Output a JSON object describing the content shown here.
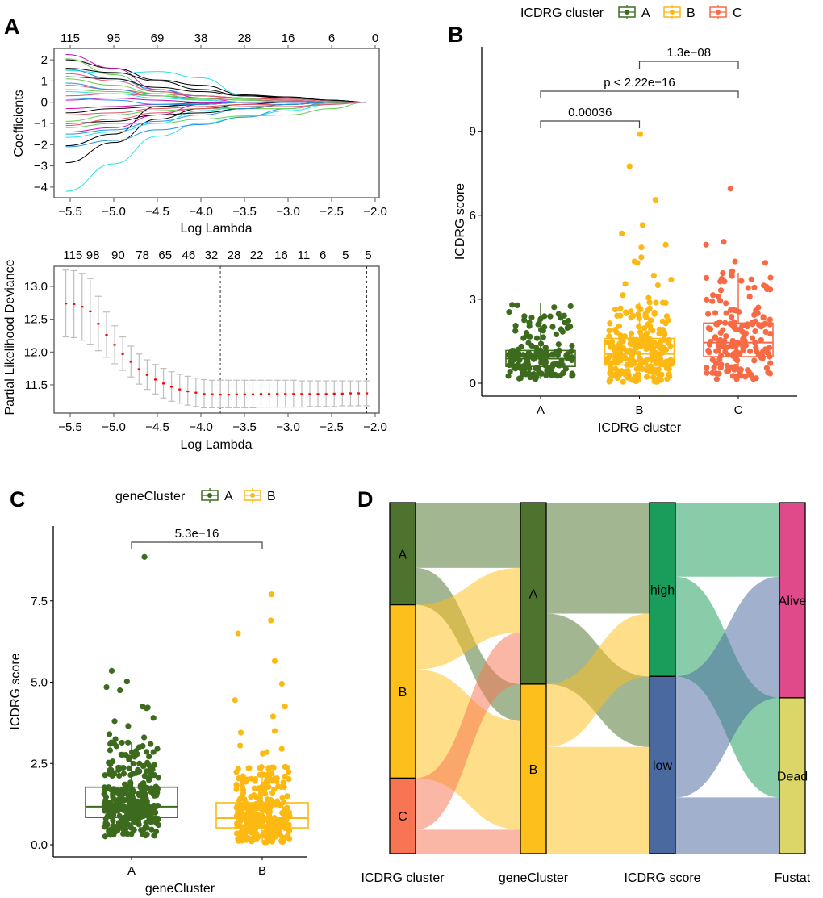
{
  "panel_labels": {
    "A": "A",
    "B": "B",
    "C": "C",
    "D": "D"
  },
  "chart_data": [
    {
      "id": "lasso-coefficients",
      "type": "line",
      "xlabel": "Log Lambda",
      "ylabel": "Coefficients",
      "xlim": [
        -5.65,
        -2.0
      ],
      "ylim": [
        -4.3,
        2.35
      ],
      "xticks": [
        -5.5,
        -5.0,
        -4.5,
        -4.0,
        -3.5,
        -3.0,
        -2.5,
        -2.0
      ],
      "xtick_labels": [
        "−5.5",
        "−5.0",
        "−4.5",
        "−4.0",
        "−3.5",
        "−3.0",
        "−2.5",
        "−2.0"
      ],
      "yticks": [
        -4,
        -3,
        -2,
        -1,
        0,
        1,
        2
      ],
      "ytick_labels": [
        "−4",
        "−3",
        "−2",
        "−1",
        "0",
        "1",
        "2"
      ],
      "top_axis": {
        "ticks": [
          -5.5,
          -5.0,
          -4.5,
          -4.0,
          -3.5,
          -3.0,
          -2.5,
          -2.0
        ],
        "labels": [
          "115",
          "95",
          "69",
          "38",
          "28",
          "16",
          "6",
          "0"
        ]
      },
      "x": [
        -5.55,
        -5.0,
        -4.5,
        -4.0,
        -3.5,
        -3.0,
        -2.5,
        -2.1
      ],
      "series": [
        {
          "color": "#28E2E5",
          "values": [
            -4.2,
            -2.9,
            -1.6,
            -1.0,
            -0.7,
            -0.4,
            -0.1,
            0
          ]
        },
        {
          "color": "#000000",
          "values": [
            -2.85,
            -1.9,
            -0.8,
            -0.3,
            -0.1,
            0,
            0,
            0
          ]
        },
        {
          "color": "#000000",
          "values": [
            -2.05,
            -1.5,
            -0.2,
            0,
            0,
            0,
            0,
            0
          ]
        },
        {
          "color": "#2297E6",
          "values": [
            -2.1,
            -1.8,
            -1.3,
            -1.05,
            -0.7,
            -0.3,
            0,
            0
          ]
        },
        {
          "color": "#000000",
          "values": [
            2.0,
            1.6,
            1.05,
            0.8,
            0.35,
            0.25,
            0.1,
            0
          ]
        },
        {
          "color": "#CD0BBC",
          "values": [
            2.25,
            1.6,
            0.6,
            0.2,
            0,
            0,
            0,
            0
          ]
        },
        {
          "color": "#61D04F",
          "values": [
            2.05,
            1.3,
            0.5,
            0.3,
            0.15,
            0.05,
            0,
            0
          ]
        },
        {
          "color": "#28E2E5",
          "values": [
            1.5,
            1.35,
            1.45,
            1.15,
            0.3,
            0.2,
            0.1,
            0
          ]
        },
        {
          "color": "#000000",
          "values": [
            1.6,
            1.4,
            1.0,
            0.6,
            0.3,
            0.2,
            0.1,
            0
          ]
        },
        {
          "color": "#2297E6",
          "values": [
            1.55,
            1.1,
            0.6,
            0.3,
            0.2,
            0.1,
            0,
            0
          ]
        },
        {
          "color": "#61D04F",
          "values": [
            -1.2,
            -1.0,
            -1.0,
            -0.8,
            -0.65,
            -0.6,
            -0.3,
            0
          ]
        },
        {
          "color": "#61D04F",
          "values": [
            -0.9,
            -0.6,
            -0.4,
            -0.3,
            -0.3,
            -0.3,
            -0.05,
            0
          ]
        },
        {
          "color": "#DF536B",
          "values": [
            0.8,
            0.6,
            0.4,
            0.3,
            0.2,
            0.15,
            0.05,
            0
          ]
        },
        {
          "color": "#DF536B",
          "values": [
            -0.6,
            -0.5,
            -0.3,
            -0.2,
            -0.1,
            -0.1,
            0,
            0
          ]
        },
        {
          "color": "#CD0BBC",
          "values": [
            -1.4,
            -1.2,
            -0.6,
            -0.1,
            0,
            0,
            0,
            0
          ]
        },
        {
          "color": "#000000",
          "values": [
            1.2,
            1.1,
            0.7,
            0.5,
            0.3,
            0.25,
            0.1,
            0
          ]
        },
        {
          "color": "#2297E6",
          "values": [
            0.9,
            0.6,
            0.3,
            0.1,
            0,
            0,
            0,
            0
          ]
        },
        {
          "color": "#28E2E5",
          "values": [
            -1.65,
            -1.4,
            -1.0,
            -0.4,
            -0.2,
            -0.1,
            0,
            0
          ]
        },
        {
          "color": "#000000",
          "values": [
            -1.0,
            -0.9,
            -0.6,
            -0.5,
            -0.3,
            -0.1,
            0,
            0
          ]
        },
        {
          "color": "#DF536B",
          "values": [
            0.3,
            0.4,
            0.3,
            0.2,
            0.1,
            0.05,
            0,
            0
          ]
        },
        {
          "color": "#61D04F",
          "values": [
            1.1,
            0.8,
            0.4,
            0.1,
            0,
            0,
            0,
            0
          ]
        },
        {
          "color": "#CD0BBC",
          "values": [
            -0.3,
            -0.2,
            -0.1,
            -0.05,
            0,
            0,
            0,
            0
          ]
        },
        {
          "color": "#2297E6",
          "values": [
            -1.5,
            -1.3,
            -0.9,
            -0.6,
            -0.3,
            -0.1,
            0,
            0
          ]
        },
        {
          "color": "#28E2E5",
          "values": [
            0.5,
            0.4,
            0.2,
            0.1,
            0,
            0,
            0,
            0
          ]
        },
        {
          "color": "#000000",
          "values": [
            -0.5,
            -0.3,
            -0.2,
            -0.1,
            0,
            0,
            0,
            0
          ]
        },
        {
          "color": "#DF536B",
          "values": [
            -1.1,
            -0.8,
            -0.5,
            -0.3,
            -0.2,
            -0.2,
            -0.1,
            0
          ]
        },
        {
          "color": "#61D04F",
          "values": [
            0.6,
            0.5,
            0.3,
            0.15,
            0.1,
            0,
            0,
            0
          ]
        },
        {
          "color": "#CD0BBC",
          "values": [
            0.1,
            0.2,
            0.1,
            0,
            0,
            0,
            0,
            0
          ]
        },
        {
          "color": "#2297E6",
          "values": [
            0.2,
            0.1,
            -0.1,
            -0.1,
            0,
            0,
            0,
            0
          ]
        },
        {
          "color": "#DF536B",
          "values": [
            1.35,
            1.0,
            0.5,
            0.3,
            0.2,
            0.1,
            0,
            0
          ]
        }
      ]
    },
    {
      "id": "lasso-cv",
      "type": "scatter",
      "xlabel": "Log Lambda",
      "ylabel": "Partial Likelihood Deviance",
      "xlim": [
        -5.65,
        -2.0
      ],
      "ylim": [
        11.1,
        13.32
      ],
      "xticks": [
        -5.5,
        -5.0,
        -4.5,
        -4.0,
        -3.5,
        -3.0,
        -2.5,
        -2.0
      ],
      "xtick_labels": [
        "−5.5",
        "−5.0",
        "−4.5",
        "−4.0",
        "−3.5",
        "−3.0",
        "−2.5",
        "−2.0"
      ],
      "yticks": [
        11.5,
        12.0,
        12.5,
        13.0
      ],
      "ytick_labels": [
        "11.5",
        "12.0",
        "12.5",
        "13.0"
      ],
      "top_axis": {
        "ticks": [
          -5.47,
          -5.24,
          -4.95,
          -4.67,
          -4.41,
          -4.14,
          -3.88,
          -3.62,
          -3.36,
          -3.08,
          -2.82,
          -2.6,
          -2.34,
          -2.08
        ],
        "labels": [
          "115",
          "98",
          "90",
          "78",
          "65",
          "46",
          "32",
          "28",
          "22",
          "16",
          "11",
          "6",
          "5",
          "5"
        ]
      },
      "point_color": "#FF0000",
      "errorbar_color": "#BEBEBE",
      "vlines": [
        -3.777,
        -2.097
      ],
      "x": [
        -5.55,
        -5.457,
        -5.363,
        -5.27,
        -5.177,
        -5.083,
        -4.99,
        -4.897,
        -4.803,
        -4.71,
        -4.617,
        -4.523,
        -4.43,
        -4.337,
        -4.243,
        -4.15,
        -4.057,
        -3.963,
        -3.87,
        -3.777,
        -3.683,
        -3.59,
        -3.497,
        -3.403,
        -3.31,
        -3.217,
        -3.123,
        -3.03,
        -2.937,
        -2.843,
        -2.75,
        -2.657,
        -2.563,
        -2.47,
        -2.377,
        -2.283,
        -2.19,
        -2.097
      ],
      "y": [
        12.74,
        12.73,
        12.69,
        12.62,
        12.43,
        12.26,
        12.11,
        11.97,
        11.85,
        11.74,
        11.65,
        11.58,
        11.52,
        11.47,
        11.43,
        11.4,
        11.38,
        11.36,
        11.355,
        11.35,
        11.35,
        11.355,
        11.355,
        11.355,
        11.36,
        11.36,
        11.36,
        11.36,
        11.36,
        11.36,
        11.36,
        11.36,
        11.36,
        11.365,
        11.365,
        11.37,
        11.37,
        11.37
      ],
      "upper": [
        13.25,
        13.24,
        13.2,
        13.12,
        12.85,
        12.61,
        12.4,
        12.23,
        12.09,
        11.97,
        11.88,
        11.81,
        11.75,
        11.7,
        11.66,
        11.63,
        11.6,
        11.58,
        11.57,
        11.57,
        11.57,
        11.57,
        11.57,
        11.57,
        11.57,
        11.57,
        11.57,
        11.57,
        11.57,
        11.56,
        11.56,
        11.56,
        11.56,
        11.56,
        11.56,
        11.56,
        11.56,
        11.56
      ],
      "lower": [
        12.23,
        12.22,
        12.18,
        12.12,
        12.02,
        11.92,
        11.82,
        11.72,
        11.62,
        11.51,
        11.43,
        11.36,
        11.3,
        11.25,
        11.22,
        11.19,
        11.17,
        11.15,
        11.15,
        11.15,
        11.15,
        11.15,
        11.15,
        11.15,
        11.16,
        11.16,
        11.16,
        11.16,
        11.16,
        11.16,
        11.17,
        11.17,
        11.17,
        11.17,
        11.18,
        11.18,
        11.18,
        11.18
      ]
    },
    {
      "id": "icdrg-cluster-boxplot",
      "type": "box",
      "xlabel": "ICDRG cluster",
      "ylabel": "ICDRG score",
      "legend_title": "ICDRG cluster",
      "legend_position": "top",
      "ylim": [
        -0.4,
        12.2
      ],
      "yticks": [
        0,
        3,
        6,
        9
      ],
      "ytick_labels": [
        "0",
        "3",
        "6",
        "9"
      ],
      "categories": [
        "A",
        "B",
        "C"
      ],
      "colors": [
        "#3D6B1E",
        "#FDB913",
        "#F86A45"
      ],
      "boxes": [
        {
          "whisker_low": 0.15,
          "q1": 0.6,
          "median": 0.88,
          "q3": 1.17,
          "whisker_high": 2.85
        },
        {
          "whisker_low": 0.05,
          "q1": 0.65,
          "median": 1.05,
          "q3": 1.6,
          "whisker_high": 2.9
        },
        {
          "whisker_low": 0.15,
          "q1": 0.95,
          "median": 1.45,
          "q3": 2.15,
          "whisker_high": 3.95
        }
      ],
      "outliers": [
        [],
        [
          8.9,
          7.75,
          6.55,
          5.65,
          5.35,
          4.95,
          4.85,
          4.5,
          4.35,
          4.3,
          3.85,
          3.7,
          3.55,
          3.5,
          3.15,
          3.05
        ],
        [
          6.95,
          5.05,
          4.95,
          4.35,
          4.3,
          4.0
        ]
      ],
      "comparisons": [
        {
          "from": "A",
          "to": "B",
          "label": "0.00036",
          "level": 0
        },
        {
          "from": "A",
          "to": "C",
          "label": "p < 2.22e−16",
          "level": 1
        },
        {
          "from": "B",
          "to": "C",
          "label": "1.3e−08",
          "level": 2
        }
      ]
    },
    {
      "id": "genecluster-boxplot",
      "type": "box",
      "xlabel": "geneCluster",
      "ylabel": "ICDRG score",
      "legend_title": "geneCluster",
      "legend_position": "top",
      "ylim": [
        -0.35,
        9.9
      ],
      "yticks": [
        0,
        2.5,
        5,
        7.5
      ],
      "ytick_labels": [
        "0.0",
        "2.5",
        "5.0",
        "7.5"
      ],
      "categories": [
        "A",
        "B"
      ],
      "colors": [
        "#3D6B1E",
        "#FDB913"
      ],
      "boxes": [
        {
          "whisker_low": 0.25,
          "q1": 0.84,
          "median": 1.17,
          "q3": 1.77,
          "whisker_high": 3.15
        },
        {
          "whisker_low": 0.07,
          "q1": 0.52,
          "median": 0.82,
          "q3": 1.29,
          "whisker_high": 2.4
        }
      ],
      "outliers": [
        [
          8.85,
          5.35,
          5.02,
          4.85,
          4.75,
          4.25,
          4.22,
          4.2,
          3.9,
          3.8,
          3.65,
          3.4,
          3.3,
          3.25
        ],
        [
          7.7,
          6.9,
          6.5,
          5.65,
          4.95,
          4.45,
          4.25,
          3.95,
          3.5,
          3.45,
          3.05,
          2.95,
          2.85,
          2.8
        ]
      ],
      "comparisons": [
        {
          "from": "A",
          "to": "B",
          "label": "5.3e−16",
          "level": 0
        }
      ]
    },
    {
      "id": "alluvial",
      "type": "sankey",
      "axes": [
        {
          "label": "ICDRG cluster",
          "nodes": [
            {
              "name": "A",
              "value": 29.1,
              "color": "#4E732E"
            },
            {
              "name": "B",
              "value": 49.4,
              "color": "#FDBF1B"
            },
            {
              "name": "C",
              "value": 21.5,
              "color": "#F87553"
            }
          ]
        },
        {
          "label": "geneCluster",
          "nodes": [
            {
              "name": "A",
              "value": 51.7,
              "color": "#4E732E"
            },
            {
              "name": "B",
              "value": 48.3,
              "color": "#FDBF1B"
            }
          ]
        },
        {
          "label": "ICDRG score",
          "nodes": [
            {
              "name": "high",
              "value": 49.5,
              "color": "#1A9D5B"
            },
            {
              "name": "low",
              "value": 50.5,
              "color": "#4A6A9F"
            }
          ]
        },
        {
          "label": "Fustat",
          "nodes": [
            {
              "name": "Alive",
              "value": 55.6,
              "color": "#E0498A"
            },
            {
              "name": "Dead",
              "value": 44.4,
              "color": "#DBD667"
            }
          ]
        }
      ],
      "flows": [
        {
          "axis": 0,
          "from": "A",
          "to": "A",
          "value": 18.6
        },
        {
          "axis": 0,
          "from": "A",
          "to": "B",
          "value": 10.5
        },
        {
          "axis": 0,
          "from": "B",
          "to": "A",
          "value": 18.4
        },
        {
          "axis": 0,
          "from": "B",
          "to": "B",
          "value": 31.0
        },
        {
          "axis": 0,
          "from": "C",
          "to": "A",
          "value": 14.7
        },
        {
          "axis": 0,
          "from": "C",
          "to": "B",
          "value": 6.8
        },
        {
          "axis": 1,
          "from": "A",
          "to": "high",
          "value": 31.6
        },
        {
          "axis": 1,
          "from": "A",
          "to": "low",
          "value": 20.1
        },
        {
          "axis": 1,
          "from": "B",
          "to": "high",
          "value": 17.9
        },
        {
          "axis": 1,
          "from": "B",
          "to": "low",
          "value": 30.4
        },
        {
          "axis": 2,
          "from": "high",
          "to": "Alive",
          "value": 21.1
        },
        {
          "axis": 2,
          "from": "high",
          "to": "Dead",
          "value": 28.4
        },
        {
          "axis": 2,
          "from": "low",
          "to": "Alive",
          "value": 34.5
        },
        {
          "axis": 2,
          "from": "low",
          "to": "Dead",
          "value": 16.0
        }
      ]
    }
  ]
}
